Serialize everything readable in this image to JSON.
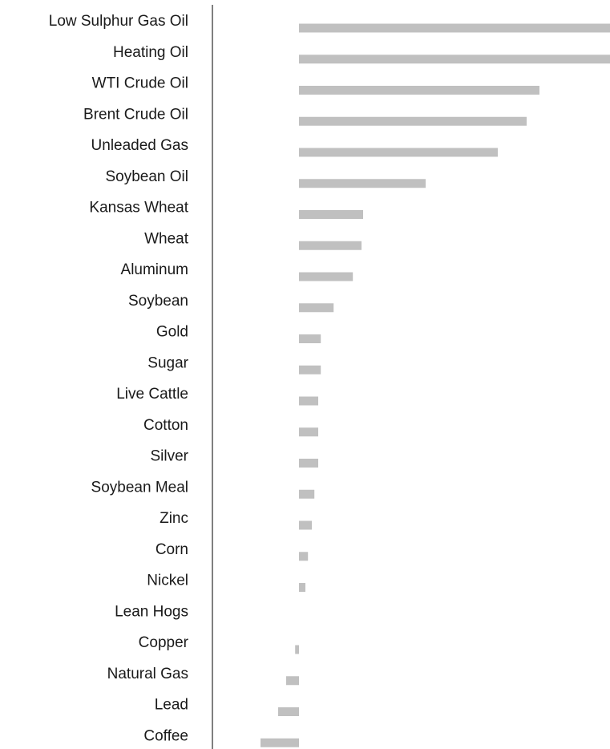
{
  "chart_data": {
    "type": "bar",
    "orientation": "horizontal",
    "title": "",
    "xlabel": "",
    "ylabel": "",
    "grid": false,
    "legend": "none",
    "bar_color": "#c0c0c0",
    "axis_color": "#7f7f7f",
    "xlim": [
      -12,
      97
    ],
    "categories": [
      "Low Sulphur Gas Oil",
      "Heating Oil",
      "WTI Crude Oil",
      "Brent Crude Oil",
      "Unleaded Gas",
      "Soybean Oil",
      "Kansas Wheat",
      "Wheat",
      "Aluminum",
      "Soybean",
      "Gold",
      "Sugar",
      "Live Cattle",
      "Cotton",
      "Silver",
      "Soybean Meal",
      "Zinc",
      "Corn",
      "Nickel",
      "Lean Hogs",
      "Copper",
      "Natural Gas",
      "Lead",
      "Coffee"
    ],
    "values": [
      97,
      97,
      75,
      71,
      62,
      39.5,
      20,
      19.5,
      16.8,
      10.8,
      6.8,
      6.8,
      6,
      6,
      6,
      4.8,
      4,
      2.8,
      2,
      0,
      -1.2,
      -4,
      -6.5,
      -12
    ]
  }
}
